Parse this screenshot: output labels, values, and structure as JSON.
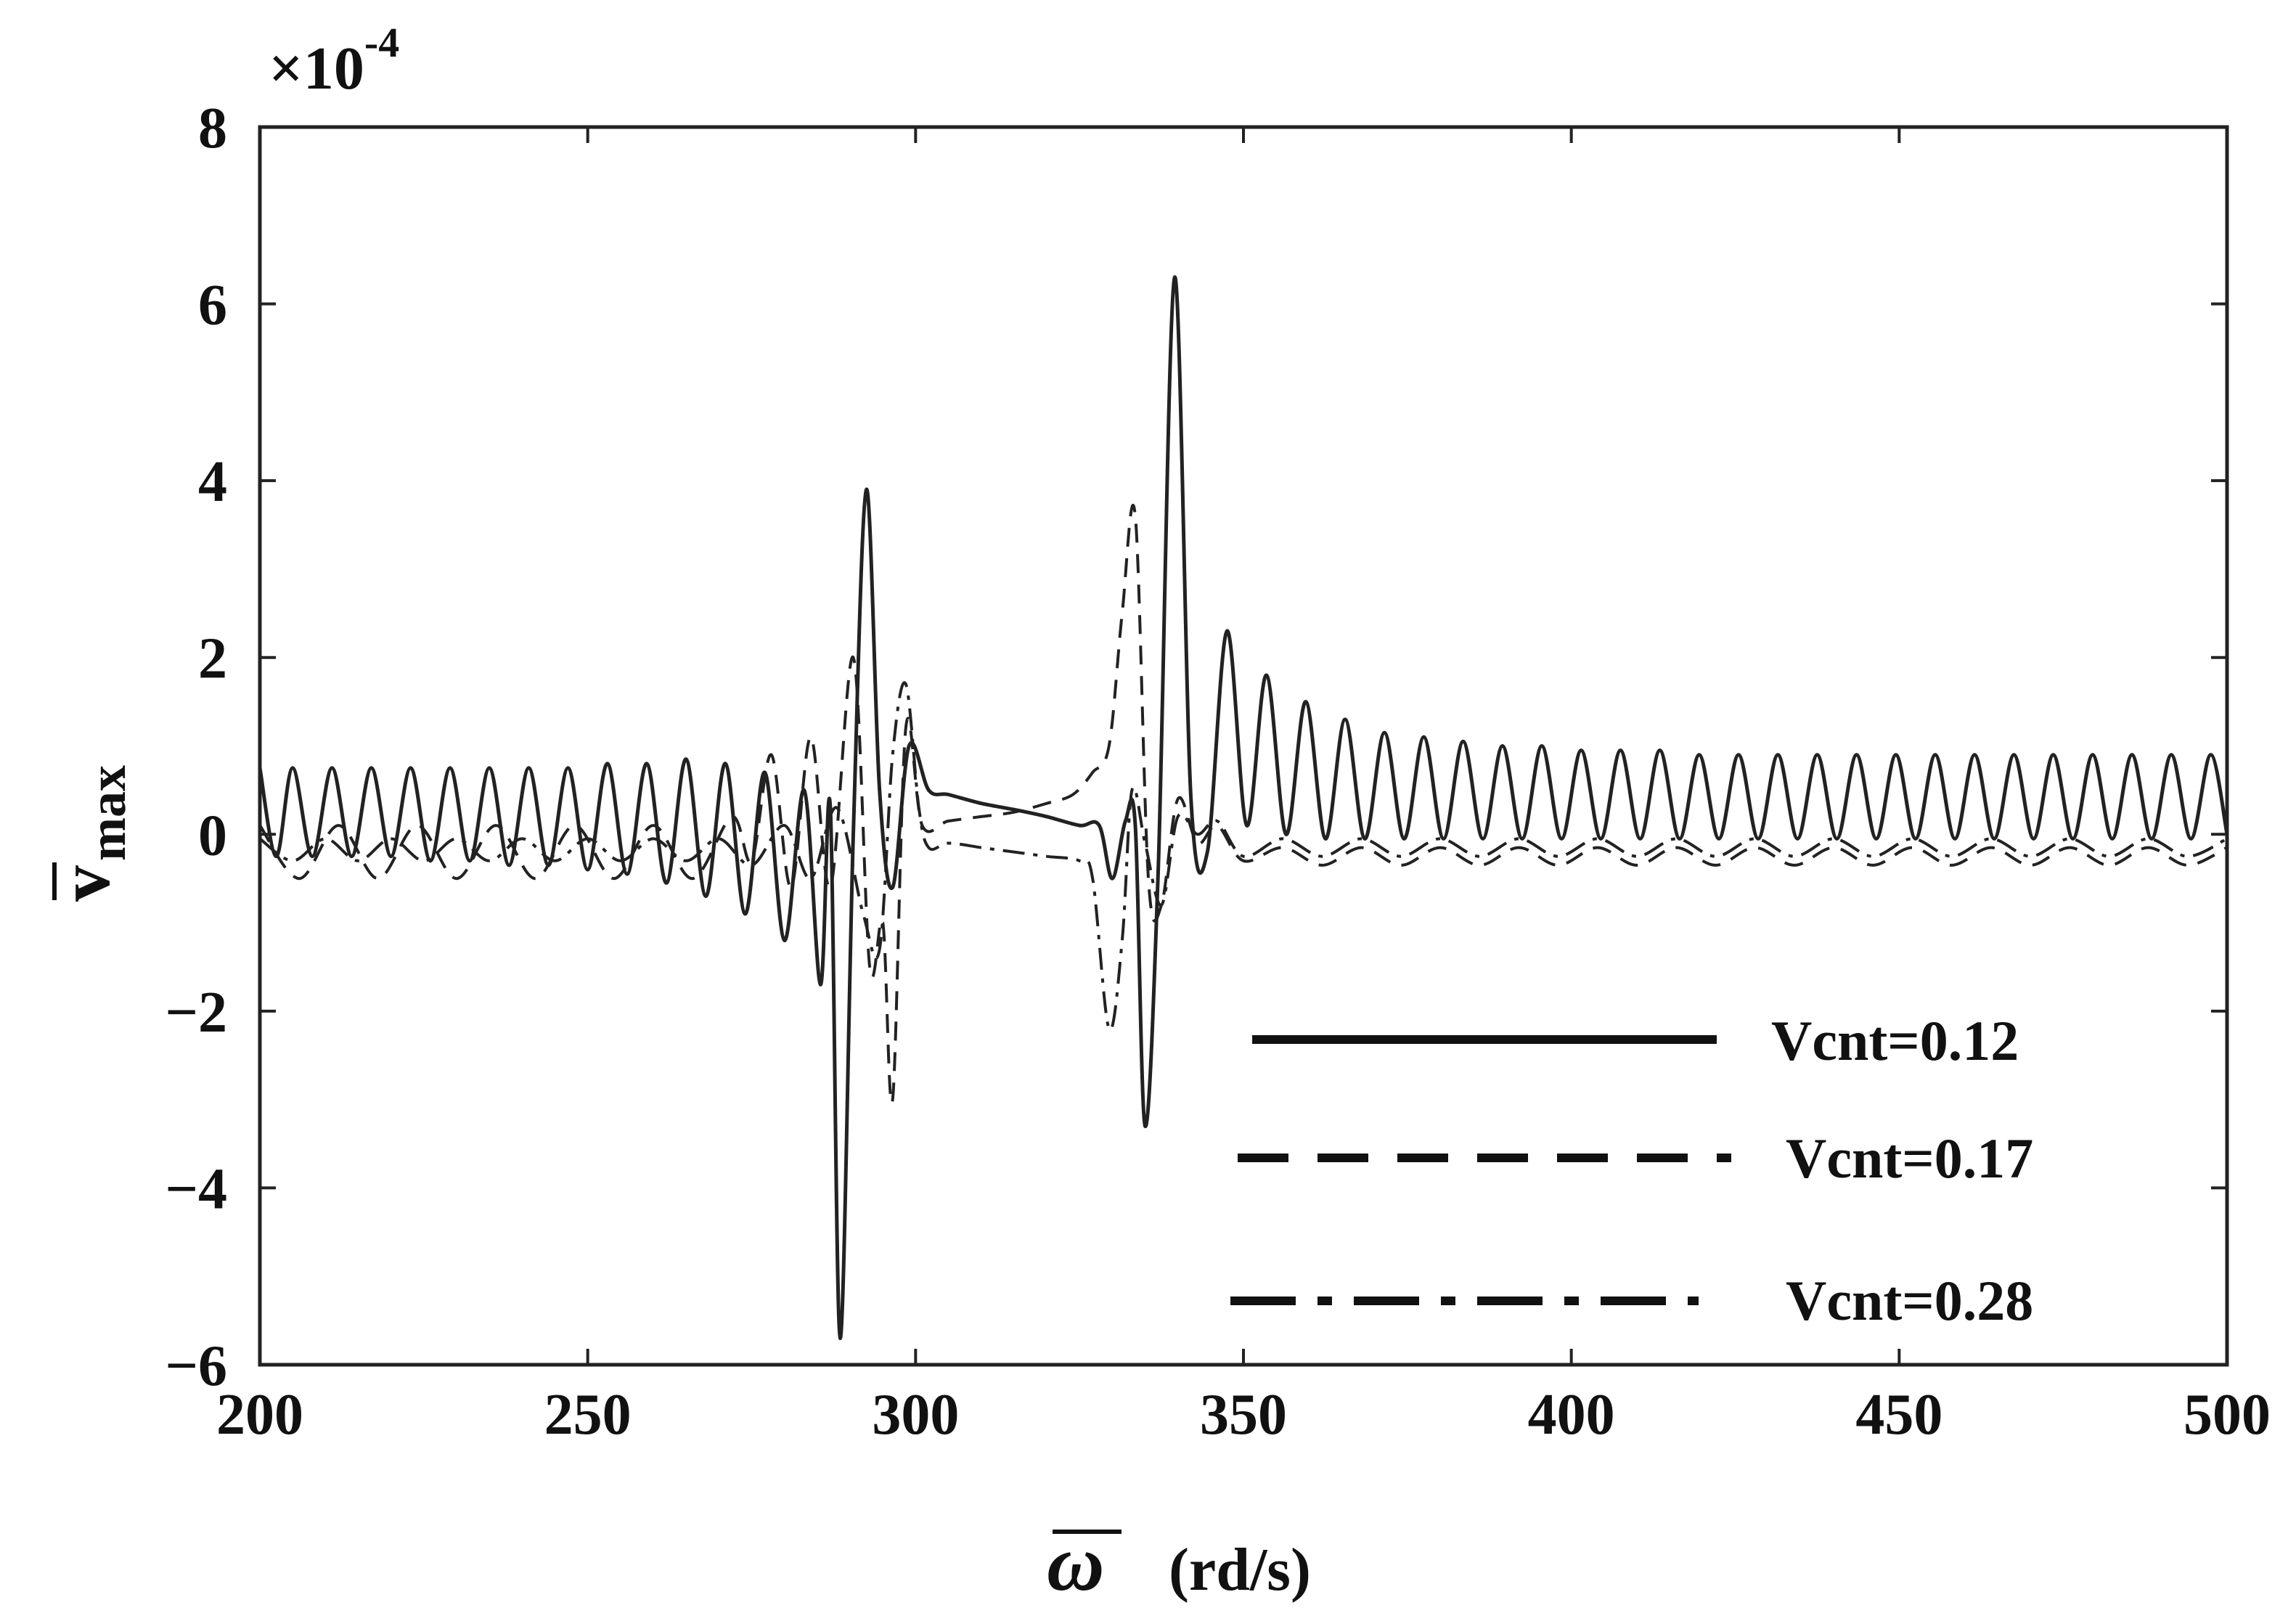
{
  "chart_data": {
    "type": "line",
    "title": "",
    "xlabel_symbol": "ω",
    "xlabel_unit": "(rd/s)",
    "ylabel_main": "v",
    "ylabel_sub": "max",
    "y_exponent_prefix": "×10",
    "y_exponent_power": "-4",
    "xlim": [
      200,
      500
    ],
    "ylim": [
      -6,
      8
    ],
    "x_ticks": [
      200,
      250,
      300,
      350,
      400,
      450,
      500
    ],
    "y_ticks": [
      -6,
      -4,
      -2,
      0,
      2,
      4,
      6,
      8
    ],
    "y_tick_labels": [
      "−6",
      "−4",
      "−2",
      "0",
      "2",
      "4",
      "6",
      "8"
    ],
    "grid": false,
    "legend_position": "bottom-right",
    "series": [
      {
        "name": "Vcnt=0.12",
        "style": "solid",
        "points": [
          [
            200,
            0.75
          ],
          [
            202.5,
            -0.25
          ],
          [
            205,
            0.75
          ],
          [
            208,
            -0.25
          ],
          [
            211,
            0.75
          ],
          [
            214,
            -0.25
          ],
          [
            217,
            0.75
          ],
          [
            220,
            -0.25
          ],
          [
            223,
            0.75
          ],
          [
            226,
            -0.3
          ],
          [
            229,
            0.75
          ],
          [
            232,
            -0.3
          ],
          [
            235,
            0.75
          ],
          [
            238,
            -0.35
          ],
          [
            241,
            0.75
          ],
          [
            244,
            -0.35
          ],
          [
            247,
            0.75
          ],
          [
            250,
            -0.4
          ],
          [
            253,
            0.8
          ],
          [
            256,
            -0.45
          ],
          [
            259,
            0.8
          ],
          [
            262,
            -0.55
          ],
          [
            265,
            0.85
          ],
          [
            268,
            -0.7
          ],
          [
            271,
            0.8
          ],
          [
            274,
            -0.9
          ],
          [
            277,
            0.7
          ],
          [
            280,
            -1.2
          ],
          [
            283,
            0.5
          ],
          [
            285.5,
            -1.7
          ],
          [
            287,
            0.3
          ],
          [
            288.5,
            -5.7
          ],
          [
            290.5,
            0.0
          ],
          [
            292.5,
            3.9
          ],
          [
            294.5,
            0.5
          ],
          [
            296.5,
            -0.6
          ],
          [
            299,
            1.0
          ],
          [
            302,
            0.5
          ],
          [
            305,
            0.45
          ],
          [
            310,
            0.35
          ],
          [
            315,
            0.28
          ],
          [
            320,
            0.2
          ],
          [
            325,
            0.1
          ],
          [
            328,
            0.1
          ],
          [
            330,
            -0.5
          ],
          [
            332,
            0.15
          ],
          [
            333.5,
            0.1
          ],
          [
            335,
            -3.3
          ],
          [
            337,
            -0.4
          ],
          [
            339.5,
            6.3
          ],
          [
            342,
            0.4
          ],
          [
            344.5,
            -0.2
          ],
          [
            347.5,
            2.3
          ],
          [
            350.5,
            0.1
          ],
          [
            353.5,
            1.8
          ],
          [
            356.5,
            0.0
          ],
          [
            359.5,
            1.5
          ],
          [
            362.5,
            -0.05
          ],
          [
            365.5,
            1.3
          ],
          [
            368.5,
            -0.05
          ],
          [
            371.5,
            1.15
          ],
          [
            374.5,
            -0.05
          ],
          [
            377.5,
            1.1
          ],
          [
            380.5,
            -0.05
          ],
          [
            383.5,
            1.05
          ],
          [
            386.5,
            -0.05
          ],
          [
            389.5,
            1.0
          ],
          [
            392.5,
            -0.05
          ],
          [
            395.5,
            1.0
          ],
          [
            398.5,
            -0.05
          ],
          [
            401.5,
            0.95
          ],
          [
            404.5,
            -0.05
          ],
          [
            407.5,
            0.95
          ],
          [
            410.5,
            -0.05
          ],
          [
            413.5,
            0.95
          ],
          [
            416.5,
            -0.05
          ],
          [
            419.5,
            0.9
          ],
          [
            422.5,
            -0.05
          ],
          [
            425.5,
            0.9
          ],
          [
            428.5,
            -0.05
          ],
          [
            431.5,
            0.9
          ],
          [
            434.5,
            -0.05
          ],
          [
            437.5,
            0.9
          ],
          [
            440.5,
            -0.05
          ],
          [
            443.5,
            0.9
          ],
          [
            446.5,
            -0.05
          ],
          [
            449.5,
            0.9
          ],
          [
            452.5,
            -0.05
          ],
          [
            455.5,
            0.9
          ],
          [
            458.5,
            -0.05
          ],
          [
            461.5,
            0.9
          ],
          [
            464.5,
            -0.05
          ],
          [
            467.5,
            0.9
          ],
          [
            470.5,
            -0.05
          ],
          [
            473.5,
            0.9
          ],
          [
            476.5,
            -0.05
          ],
          [
            479.5,
            0.9
          ],
          [
            482.5,
            -0.05
          ],
          [
            485.5,
            0.9
          ],
          [
            488.5,
            -0.05
          ],
          [
            491.5,
            0.9
          ],
          [
            494.5,
            -0.05
          ],
          [
            497.5,
            0.9
          ],
          [
            500,
            0.0
          ]
        ]
      },
      {
        "name": "Vcnt=0.17",
        "style": "dashed",
        "points": [
          [
            200,
            0.1
          ],
          [
            206,
            -0.5
          ],
          [
            212,
            0.1
          ],
          [
            218,
            -0.5
          ],
          [
            224,
            0.1
          ],
          [
            230,
            -0.5
          ],
          [
            236,
            0.1
          ],
          [
            242,
            -0.5
          ],
          [
            248,
            0.1
          ],
          [
            254,
            -0.5
          ],
          [
            260,
            0.1
          ],
          [
            266,
            -0.5
          ],
          [
            272,
            0.2
          ],
          [
            275,
            -0.3
          ],
          [
            278,
            0.9
          ],
          [
            281,
            -0.6
          ],
          [
            284,
            1.1
          ],
          [
            287,
            -0.6
          ],
          [
            290.5,
            2.0
          ],
          [
            293,
            -1.5
          ],
          [
            295,
            -1.0
          ],
          [
            296.5,
            -3.0
          ],
          [
            298.5,
            1.2
          ],
          [
            301,
            0.1
          ],
          [
            305,
            0.15
          ],
          [
            310,
            0.2
          ],
          [
            315,
            0.25
          ],
          [
            320,
            0.35
          ],
          [
            324,
            0.45
          ],
          [
            327,
            0.7
          ],
          [
            329.5,
            1.0
          ],
          [
            331.5,
            2.5
          ],
          [
            333.5,
            3.6
          ],
          [
            335.5,
            -0.5
          ],
          [
            337.5,
            -0.8
          ],
          [
            340,
            0.4
          ],
          [
            343,
            -0.1
          ],
          [
            346,
            0.1
          ],
          [
            350,
            -0.3
          ],
          [
            356,
            -0.15
          ],
          [
            362,
            -0.35
          ],
          [
            368,
            -0.15
          ],
          [
            374,
            -0.35
          ],
          [
            380,
            -0.15
          ],
          [
            386,
            -0.35
          ],
          [
            392,
            -0.15
          ],
          [
            398,
            -0.35
          ],
          [
            404,
            -0.15
          ],
          [
            410,
            -0.35
          ],
          [
            416,
            -0.15
          ],
          [
            422,
            -0.35
          ],
          [
            428,
            -0.15
          ],
          [
            434,
            -0.35
          ],
          [
            440,
            -0.15
          ],
          [
            446,
            -0.35
          ],
          [
            452,
            -0.15
          ],
          [
            458,
            -0.35
          ],
          [
            464,
            -0.15
          ],
          [
            470,
            -0.35
          ],
          [
            476,
            -0.15
          ],
          [
            482,
            -0.35
          ],
          [
            488,
            -0.15
          ],
          [
            494,
            -0.35
          ],
          [
            500,
            -0.15
          ]
        ]
      },
      {
        "name": "Vcnt=0.28",
        "style": "dashdot",
        "points": [
          [
            200,
            -0.05
          ],
          [
            205,
            -0.3
          ],
          [
            210,
            -0.05
          ],
          [
            215,
            -0.3
          ],
          [
            220,
            -0.05
          ],
          [
            225,
            -0.3
          ],
          [
            230,
            -0.05
          ],
          [
            235,
            -0.3
          ],
          [
            240,
            -0.05
          ],
          [
            245,
            -0.3
          ],
          [
            250,
            -0.05
          ],
          [
            255,
            -0.3
          ],
          [
            260,
            -0.05
          ],
          [
            265,
            -0.3
          ],
          [
            270,
            -0.05
          ],
          [
            275,
            -0.35
          ],
          [
            280,
            0.1
          ],
          [
            284,
            -0.5
          ],
          [
            288,
            0.3
          ],
          [
            292,
            -0.9
          ],
          [
            294.5,
            -1.3
          ],
          [
            296.5,
            0.9
          ],
          [
            298.5,
            1.7
          ],
          [
            300.5,
            0.3
          ],
          [
            302,
            -0.15
          ],
          [
            305,
            -0.1
          ],
          [
            310,
            -0.15
          ],
          [
            315,
            -0.2
          ],
          [
            320,
            -0.25
          ],
          [
            325,
            -0.3
          ],
          [
            327,
            -0.5
          ],
          [
            329.5,
            -2.2
          ],
          [
            331.5,
            -1.2
          ],
          [
            333,
            0.5
          ],
          [
            335,
            -0.1
          ],
          [
            337.5,
            -0.8
          ],
          [
            340,
            0.2
          ],
          [
            343,
            0.0
          ],
          [
            346,
            0.15
          ],
          [
            350,
            -0.25
          ],
          [
            356,
            -0.05
          ],
          [
            362,
            -0.25
          ],
          [
            368,
            -0.05
          ],
          [
            374,
            -0.25
          ],
          [
            380,
            -0.05
          ],
          [
            386,
            -0.25
          ],
          [
            392,
            -0.05
          ],
          [
            398,
            -0.25
          ],
          [
            404,
            -0.05
          ],
          [
            410,
            -0.25
          ],
          [
            416,
            -0.05
          ],
          [
            422,
            -0.25
          ],
          [
            428,
            -0.05
          ],
          [
            434,
            -0.25
          ],
          [
            440,
            -0.05
          ],
          [
            446,
            -0.25
          ],
          [
            452,
            -0.05
          ],
          [
            458,
            -0.25
          ],
          [
            464,
            -0.05
          ],
          [
            470,
            -0.25
          ],
          [
            476,
            -0.05
          ],
          [
            482,
            -0.25
          ],
          [
            488,
            -0.05
          ],
          [
            494,
            -0.25
          ],
          [
            500,
            -0.05
          ]
        ]
      }
    ]
  }
}
